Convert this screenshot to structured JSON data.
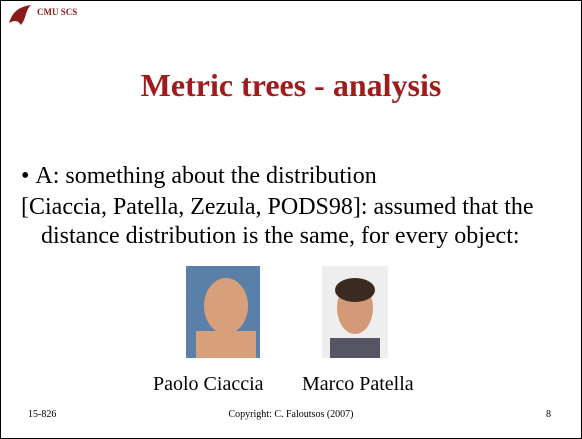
{
  "header": {
    "label": "CMU SCS"
  },
  "title": "Metric trees - analysis",
  "bullets": [
    "A: something about the distribution"
  ],
  "paragraph": "[Ciaccia, Patella, Zezula, PODS98]: assumed that the distance distribution is the same, for every object:",
  "people": [
    "Paolo Ciaccia",
    "Marco Patella"
  ],
  "footer": {
    "left": "15-826",
    "center": "Copyright: C. Faloutsos (2007)",
    "right": "8"
  }
}
